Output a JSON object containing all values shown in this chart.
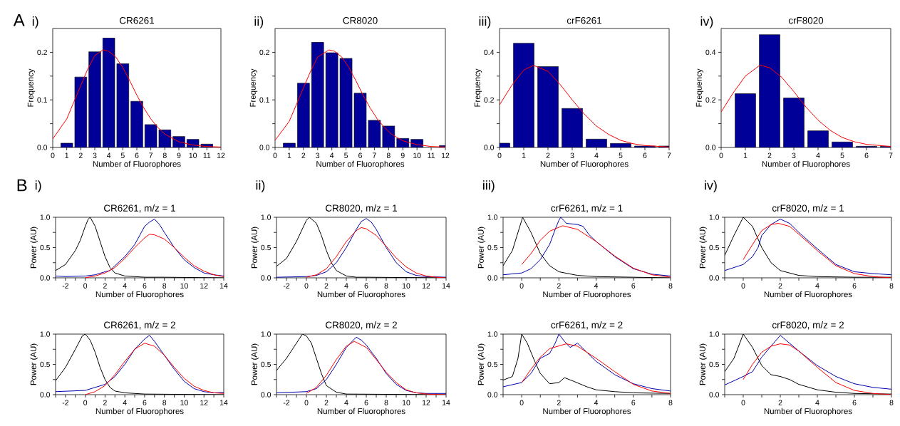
{
  "chart_data": [
    {
      "type": "bar",
      "title": "CR6261",
      "xlabel": "Number of Fluorophores",
      "ylabel": "Frequency",
      "annotations": [
        "A",
        "i)"
      ],
      "xlim": [
        0,
        12
      ],
      "ylim": [
        0,
        0.25
      ],
      "xticks": [
        0,
        1,
        2,
        3,
        4,
        5,
        6,
        7,
        8,
        9,
        10,
        11,
        12
      ],
      "yticks": [
        {
          "value": 0,
          "label": "0.0"
        },
        {
          "value": 0.05,
          "label": null
        },
        {
          "value": 0.1,
          "label": "0.1"
        },
        {
          "value": 0.15,
          "label": null
        },
        {
          "value": 0.2,
          "label": "0.2"
        }
      ],
      "series": [
        {
          "type": "bar",
          "color": "#000099",
          "x": [
            1,
            2,
            3,
            4,
            5,
            6,
            7,
            8,
            9,
            10,
            11
          ],
          "values": [
            0.009,
            0.148,
            0.201,
            0.23,
            0.176,
            0.097,
            0.048,
            0.037,
            0.023,
            0.017,
            0.007
          ]
        },
        {
          "type": "line",
          "color": "#ff0000",
          "x": [
            0,
            1,
            1.5,
            2,
            2.5,
            3,
            3.6,
            4,
            4.5,
            5,
            5.5,
            6,
            6.5,
            7,
            7.5,
            8,
            9,
            10,
            11,
            12
          ],
          "values": [
            0.018,
            0.06,
            0.095,
            0.13,
            0.165,
            0.193,
            0.205,
            0.202,
            0.19,
            0.168,
            0.14,
            0.11,
            0.083,
            0.06,
            0.042,
            0.028,
            0.012,
            0.005,
            0.002,
            0.001
          ]
        }
      ]
    },
    {
      "type": "bar",
      "title": "CR8020",
      "xlabel": "Number of Fluorophores",
      "ylabel": "Frequency",
      "annotations": [
        "ii)"
      ],
      "xlim": [
        0,
        12
      ],
      "ylim": [
        0,
        0.25
      ],
      "xticks": [
        0,
        1,
        2,
        3,
        4,
        5,
        6,
        7,
        8,
        9,
        10,
        11,
        12
      ],
      "yticks": [
        {
          "value": 0,
          "label": "0.0"
        },
        {
          "value": 0.05,
          "label": null
        },
        {
          "value": 0.1,
          "label": "0.1"
        },
        {
          "value": 0.15,
          "label": null
        },
        {
          "value": 0.2,
          "label": "0.2"
        }
      ],
      "series": [
        {
          "type": "bar",
          "color": "#000099",
          "x": [
            1,
            2,
            3,
            4,
            5,
            6,
            7,
            8,
            9,
            10,
            12
          ],
          "values": [
            0.009,
            0.135,
            0.221,
            0.199,
            0.187,
            0.114,
            0.057,
            0.045,
            0.019,
            0.017,
            0.004
          ]
        },
        {
          "type": "line",
          "color": "#ff0000",
          "x": [
            0,
            1,
            1.5,
            2,
            2.5,
            3,
            3.8,
            4.2,
            4.7,
            5.2,
            5.7,
            6.2,
            6.7,
            7.2,
            7.7,
            8.2,
            9,
            10,
            11,
            12
          ],
          "values": [
            0.015,
            0.055,
            0.09,
            0.125,
            0.16,
            0.19,
            0.205,
            0.202,
            0.19,
            0.168,
            0.14,
            0.11,
            0.083,
            0.06,
            0.042,
            0.028,
            0.014,
            0.006,
            0.002,
            0.001
          ]
        }
      ]
    },
    {
      "type": "bar",
      "title": "crF6261",
      "xlabel": "Number of Fluorophores",
      "ylabel": "Frequency",
      "annotations": [
        "iii)"
      ],
      "xlim": [
        0,
        7
      ],
      "ylim": [
        0,
        0.5
      ],
      "xticks": [
        0,
        1,
        2,
        3,
        4,
        5,
        6,
        7
      ],
      "yticks": [
        {
          "value": 0,
          "label": "0.0"
        },
        {
          "value": 0.1,
          "label": null
        },
        {
          "value": 0.2,
          "label": "0.2"
        },
        {
          "value": 0.3,
          "label": null
        },
        {
          "value": 0.4,
          "label": "0.4"
        }
      ],
      "series": [
        {
          "type": "bar",
          "color": "#000099",
          "x": [
            0,
            1,
            2,
            3,
            4,
            5,
            6,
            7
          ],
          "values": [
            0.018,
            0.438,
            0.34,
            0.164,
            0.035,
            0.017,
            0.006,
            0.006
          ]
        },
        {
          "type": "line",
          "color": "#ff0000",
          "x": [
            0,
            0.5,
            1,
            1.4,
            2,
            2.5,
            3,
            3.5,
            4,
            4.5,
            5,
            5.5,
            6,
            7
          ],
          "values": [
            0.179,
            0.26,
            0.325,
            0.345,
            0.32,
            0.265,
            0.2,
            0.14,
            0.09,
            0.055,
            0.03,
            0.016,
            0.008,
            0.002
          ]
        }
      ]
    },
    {
      "type": "bar",
      "title": "crF8020",
      "xlabel": "Number of Fluorophores",
      "ylabel": "Frequency",
      "annotations": [
        "iv)"
      ],
      "xlim": [
        0,
        7
      ],
      "ylim": [
        0,
        0.5
      ],
      "xticks": [
        0,
        1,
        2,
        3,
        4,
        5,
        6,
        7
      ],
      "yticks": [
        {
          "value": 0,
          "label": "0.0"
        },
        {
          "value": 0.1,
          "label": null
        },
        {
          "value": 0.2,
          "label": "0.2"
        },
        {
          "value": 0.3,
          "label": null
        },
        {
          "value": 0.4,
          "label": "0.4"
        }
      ],
      "series": [
        {
          "type": "bar",
          "color": "#000099",
          "x": [
            1,
            2,
            3,
            4,
            5,
            6,
            7
          ],
          "values": [
            0.226,
            0.474,
            0.208,
            0.07,
            0.023,
            0.005,
            0.005
          ]
        },
        {
          "type": "line",
          "color": "#ff0000",
          "x": [
            0,
            0.5,
            1,
            1.6,
            2,
            2.5,
            3,
            3.5,
            4,
            4.5,
            5,
            5.5,
            6,
            7
          ],
          "values": [
            0.149,
            0.23,
            0.3,
            0.346,
            0.335,
            0.295,
            0.235,
            0.17,
            0.115,
            0.072,
            0.042,
            0.024,
            0.013,
            0.004
          ]
        }
      ]
    },
    {
      "type": "line",
      "title": "CR6261, m/z = 1",
      "xlabel": "Number of Fluorophores",
      "ylabel": "Power (AU)",
      "annotations": [
        "B",
        "i)"
      ],
      "xlim": [
        -3,
        14
      ],
      "ylim": [
        0,
        1
      ],
      "xticks": [
        {
          "value": -3,
          "label": null
        },
        -2,
        {
          "value": -1,
          "label": null
        },
        0,
        {
          "value": 1,
          "label": null
        },
        2,
        {
          "value": 3,
          "label": null
        },
        4,
        {
          "value": 5,
          "label": null
        },
        6,
        {
          "value": 7,
          "label": null
        },
        8,
        {
          "value": 9,
          "label": null
        },
        10,
        {
          "value": 11,
          "label": null
        },
        12,
        {
          "value": 13,
          "label": null
        },
        14
      ],
      "yticks": [
        {
          "value": 0,
          "label": "0.0"
        },
        {
          "value": 0.25,
          "label": null
        },
        {
          "value": 0.5,
          "label": "0.5"
        },
        {
          "value": 0.75,
          "label": null
        },
        {
          "value": 1,
          "label": "1.0"
        }
      ],
      "series": [
        {
          "color": "#000000",
          "x": [
            -3,
            -2,
            -1,
            -0.5,
            0,
            0.3,
            0.5,
            1,
            1.5,
            2,
            2.5,
            3,
            4,
            5,
            6,
            8,
            14
          ],
          "values": [
            0.12,
            0.22,
            0.45,
            0.62,
            0.85,
            0.97,
            1.0,
            0.85,
            0.6,
            0.35,
            0.17,
            0.08,
            0.03,
            0.02,
            0.01,
            0.01,
            0.0
          ]
        },
        {
          "color": "#0000aa",
          "x": [
            -3,
            -2,
            0,
            1,
            2,
            2.5,
            3,
            4,
            5,
            5.5,
            6,
            6.5,
            7,
            7.5,
            8,
            9,
            10,
            11,
            12,
            13,
            14
          ],
          "values": [
            0.03,
            0.02,
            0.03,
            0.05,
            0.1,
            0.12,
            0.2,
            0.35,
            0.55,
            0.7,
            0.85,
            0.92,
            0.97,
            0.88,
            0.75,
            0.5,
            0.3,
            0.17,
            0.08,
            0.05,
            0.03
          ]
        },
        {
          "color": "#ff0000",
          "x": [
            0,
            1,
            2,
            3,
            4,
            5,
            6,
            6.5,
            7,
            8,
            9,
            10,
            11,
            12,
            13,
            14
          ],
          "values": [
            0.0,
            0.03,
            0.08,
            0.17,
            0.32,
            0.5,
            0.66,
            0.72,
            0.71,
            0.64,
            0.5,
            0.34,
            0.2,
            0.11,
            0.05,
            0.02
          ]
        }
      ]
    },
    {
      "type": "line",
      "title": "CR8020, m/z = 1",
      "xlabel": "Number of Fluorophores",
      "ylabel": "Power (AU)",
      "annotations": [
        "ii)"
      ],
      "xlim": [
        -3,
        14
      ],
      "ylim": [
        0,
        1
      ],
      "xticks": [
        {
          "value": -3,
          "label": null
        },
        -2,
        {
          "value": -1,
          "label": null
        },
        0,
        {
          "value": 1,
          "label": null
        },
        2,
        {
          "value": 3,
          "label": null
        },
        4,
        {
          "value": 5,
          "label": null
        },
        6,
        {
          "value": 7,
          "label": null
        },
        8,
        {
          "value": 9,
          "label": null
        },
        10,
        {
          "value": 11,
          "label": null
        },
        12,
        {
          "value": 13,
          "label": null
        },
        14
      ],
      "yticks": [
        {
          "value": 0,
          "label": "0.0"
        },
        {
          "value": 0.25,
          "label": null
        },
        {
          "value": 0.5,
          "label": "0.5"
        },
        {
          "value": 0.75,
          "label": null
        },
        {
          "value": 1,
          "label": "1.0"
        }
      ],
      "series": [
        {
          "color": "#000000",
          "x": [
            -3,
            -2,
            -1,
            0,
            0.3,
            1,
            1.5,
            2,
            2.5,
            3,
            4,
            5,
            6,
            14
          ],
          "values": [
            0.19,
            0.32,
            0.6,
            0.95,
            1.0,
            0.9,
            0.7,
            0.45,
            0.25,
            0.12,
            0.03,
            0.01,
            0.01,
            0.0
          ]
        },
        {
          "color": "#0000aa",
          "x": [
            -3,
            0,
            1,
            2,
            3,
            4,
            5,
            5.5,
            6,
            6.5,
            7,
            8,
            9,
            10,
            11,
            12,
            14
          ],
          "values": [
            0.01,
            0.02,
            0.04,
            0.1,
            0.25,
            0.5,
            0.8,
            0.93,
            0.98,
            0.92,
            0.8,
            0.5,
            0.25,
            0.1,
            0.04,
            0.02,
            0.01
          ]
        },
        {
          "color": "#ff0000",
          "x": [
            0,
            1,
            2,
            3,
            4,
            5,
            5.5,
            6,
            7,
            8,
            9,
            10,
            11,
            12,
            13,
            14
          ],
          "values": [
            0.01,
            0.05,
            0.15,
            0.35,
            0.6,
            0.78,
            0.83,
            0.81,
            0.7,
            0.52,
            0.33,
            0.18,
            0.08,
            0.03,
            0.01,
            0.0
          ]
        }
      ]
    },
    {
      "type": "line",
      "title": "crF6261, m/z = 1",
      "xlabel": "Number of Fluorophores",
      "ylabel": "Power (AU)",
      "annotations": [
        "iii)"
      ],
      "xlim": [
        -1,
        8
      ],
      "ylim": [
        0,
        1
      ],
      "xticks": [
        {
          "value": -1,
          "label": null
        },
        0,
        {
          "value": 1,
          "label": null
        },
        2,
        {
          "value": 3,
          "label": null
        },
        4,
        {
          "value": 5,
          "label": null
        },
        6,
        {
          "value": 7,
          "label": null
        },
        8
      ],
      "yticks": [
        {
          "value": 0,
          "label": "0.0"
        },
        {
          "value": 0.25,
          "label": null
        },
        {
          "value": 0.5,
          "label": "0.5"
        },
        {
          "value": 0.75,
          "label": null
        },
        {
          "value": 1,
          "label": "1.0"
        }
      ],
      "series": [
        {
          "color": "#000000",
          "x": [
            -1,
            -0.5,
            0,
            0.05,
            0.5,
            1,
            1.5,
            2,
            3,
            4,
            6,
            8
          ],
          "values": [
            0.2,
            0.45,
            0.95,
            1.0,
            0.75,
            0.4,
            0.2,
            0.1,
            0.04,
            0.02,
            0.01,
            0.0
          ]
        },
        {
          "color": "#0000aa",
          "x": [
            -1,
            0,
            0.5,
            1,
            1.5,
            1.8,
            2,
            2.1,
            2.4,
            3,
            3.3,
            3.6,
            4,
            5,
            6,
            7,
            8
          ],
          "values": [
            0.05,
            0.08,
            0.15,
            0.3,
            0.55,
            0.8,
            0.95,
            1.0,
            0.9,
            0.88,
            0.85,
            0.72,
            0.6,
            0.35,
            0.15,
            0.06,
            0.03
          ]
        },
        {
          "color": "#ff0000",
          "x": [
            0,
            0.5,
            1,
            1.5,
            2.2,
            3,
            4,
            5,
            6,
            7,
            8
          ],
          "values": [
            0.22,
            0.4,
            0.62,
            0.77,
            0.86,
            0.8,
            0.6,
            0.36,
            0.16,
            0.05,
            0.01
          ]
        }
      ]
    },
    {
      "type": "line",
      "title": "crF8020, m/z = 1",
      "xlabel": "Number of Fluorophores",
      "ylabel": "Power (AU)",
      "annotations": [
        "iv)"
      ],
      "xlim": [
        -1,
        8
      ],
      "ylim": [
        0,
        1
      ],
      "xticks": [
        {
          "value": -1,
          "label": null
        },
        0,
        {
          "value": 1,
          "label": null
        },
        2,
        {
          "value": 3,
          "label": null
        },
        4,
        {
          "value": 5,
          "label": null
        },
        6,
        {
          "value": 7,
          "label": null
        },
        8
      ],
      "yticks": [
        {
          "value": 0,
          "label": "0.0"
        },
        {
          "value": 0.25,
          "label": null
        },
        {
          "value": 0.5,
          "label": "0.5"
        },
        {
          "value": 0.75,
          "label": null
        },
        {
          "value": 1,
          "label": "1.0"
        }
      ],
      "series": [
        {
          "color": "#000000",
          "x": [
            -1,
            -0.5,
            0,
            0.5,
            1,
            1.5,
            2,
            3,
            4,
            6,
            8
          ],
          "values": [
            0.37,
            0.7,
            1.0,
            0.85,
            0.5,
            0.25,
            0.12,
            0.04,
            0.02,
            0.01,
            0.01
          ]
        },
        {
          "color": "#0000aa",
          "x": [
            -1,
            0,
            0.5,
            0.8,
            1,
            1.5,
            2,
            2.5,
            3,
            4,
            5,
            6,
            7,
            8
          ],
          "values": [
            0.12,
            0.22,
            0.35,
            0.5,
            0.7,
            0.88,
            0.97,
            0.9,
            0.75,
            0.48,
            0.22,
            0.1,
            0.07,
            0.05
          ]
        },
        {
          "color": "#ff0000",
          "x": [
            0,
            0.5,
            1,
            1.5,
            1.9,
            2.5,
            3,
            4,
            5,
            6,
            7,
            8
          ],
          "values": [
            0.3,
            0.55,
            0.78,
            0.88,
            0.9,
            0.85,
            0.72,
            0.45,
            0.2,
            0.07,
            0.02,
            0.0
          ]
        }
      ]
    },
    {
      "type": "line",
      "title": "CR6261, m/z = 2",
      "xlabel": "Number of Fluorophores",
      "ylabel": "Power (AU)",
      "xlim": [
        -3,
        14
      ],
      "ylim": [
        0,
        1
      ],
      "xticks": [
        {
          "value": -3,
          "label": null
        },
        -2,
        {
          "value": -1,
          "label": null
        },
        0,
        {
          "value": 1,
          "label": null
        },
        2,
        {
          "value": 3,
          "label": null
        },
        4,
        {
          "value": 5,
          "label": null
        },
        6,
        {
          "value": 7,
          "label": null
        },
        8,
        {
          "value": 9,
          "label": null
        },
        10,
        {
          "value": 11,
          "label": null
        },
        12,
        {
          "value": 13,
          "label": null
        },
        14
      ],
      "yticks": [
        {
          "value": 0,
          "label": "0.0"
        },
        {
          "value": 0.25,
          "label": null
        },
        {
          "value": 0.5,
          "label": "0.5"
        },
        {
          "value": 0.75,
          "label": null
        },
        {
          "value": 1,
          "label": "1.0"
        }
      ],
      "series": [
        {
          "color": "#000000",
          "x": [
            -3,
            -2,
            -1,
            -0.3,
            0,
            0.5,
            1,
            1.5,
            2,
            2.5,
            3,
            4,
            6,
            14
          ],
          "values": [
            0.23,
            0.45,
            0.75,
            0.97,
            1.0,
            0.9,
            0.7,
            0.45,
            0.25,
            0.12,
            0.06,
            0.03,
            0.01,
            0.0
          ]
        },
        {
          "color": "#0000aa",
          "x": [
            -3,
            0,
            1,
            2,
            3,
            4,
            5,
            6,
            6.5,
            7,
            8,
            9,
            10,
            11,
            12,
            13,
            14
          ],
          "values": [
            0.05,
            0.07,
            0.12,
            0.17,
            0.3,
            0.5,
            0.75,
            0.92,
            0.98,
            0.88,
            0.65,
            0.42,
            0.22,
            0.1,
            0.05,
            0.03,
            0.04
          ]
        },
        {
          "color": "#ff0000",
          "x": [
            0,
            1,
            2,
            3,
            4,
            5,
            6,
            7,
            8,
            9,
            10,
            11,
            12,
            13,
            14
          ],
          "values": [
            0.0,
            0.05,
            0.15,
            0.33,
            0.55,
            0.75,
            0.85,
            0.8,
            0.65,
            0.45,
            0.27,
            0.14,
            0.07,
            0.03,
            0.02
          ]
        }
      ]
    },
    {
      "type": "line",
      "title": "CR8020, m/z = 2",
      "xlabel": "Number of Fluorophores",
      "ylabel": "Power (AU)",
      "xlim": [
        -3,
        14
      ],
      "ylim": [
        0,
        1
      ],
      "xticks": [
        {
          "value": -3,
          "label": null
        },
        -2,
        {
          "value": -1,
          "label": null
        },
        0,
        {
          "value": 1,
          "label": null
        },
        2,
        {
          "value": 3,
          "label": null
        },
        4,
        {
          "value": 5,
          "label": null
        },
        6,
        {
          "value": 7,
          "label": null
        },
        8,
        {
          "value": 9,
          "label": null
        },
        10,
        {
          "value": 11,
          "label": null
        },
        12,
        {
          "value": 13,
          "label": null
        },
        14
      ],
      "yticks": [
        {
          "value": 0,
          "label": "0.0"
        },
        {
          "value": 0.25,
          "label": null
        },
        {
          "value": 0.5,
          "label": "0.5"
        },
        {
          "value": 0.75,
          "label": null
        },
        {
          "value": 1,
          "label": "1.0"
        }
      ],
      "series": [
        {
          "color": "#000000",
          "x": [
            -3,
            -2,
            -1,
            -0.4,
            0,
            0.5,
            1,
            1.5,
            2,
            3,
            4,
            14
          ],
          "values": [
            0.4,
            0.6,
            0.85,
            1.0,
            0.97,
            0.85,
            0.6,
            0.35,
            0.15,
            0.04,
            0.01,
            0.0
          ]
        },
        {
          "color": "#0000aa",
          "x": [
            -3,
            0,
            1,
            2,
            3,
            4,
            5,
            5.5,
            6,
            7,
            8,
            9,
            10,
            11,
            12,
            14
          ],
          "values": [
            0.03,
            0.05,
            0.1,
            0.25,
            0.5,
            0.78,
            0.95,
            0.9,
            0.82,
            0.6,
            0.35,
            0.17,
            0.07,
            0.03,
            0.02,
            0.02
          ]
        },
        {
          "color": "#ff0000",
          "x": [
            0,
            1,
            2,
            3,
            4,
            4.8,
            6,
            7,
            8,
            9,
            10,
            11,
            12,
            14
          ],
          "values": [
            0.02,
            0.12,
            0.32,
            0.58,
            0.8,
            0.88,
            0.78,
            0.58,
            0.37,
            0.2,
            0.08,
            0.03,
            0.01,
            0.0
          ]
        }
      ]
    },
    {
      "type": "line",
      "title": "crF6261, m/z = 2",
      "xlabel": "Number of Fluorophores",
      "ylabel": "Power (AU)",
      "xlim": [
        -1,
        8
      ],
      "ylim": [
        0,
        1
      ],
      "xticks": [
        {
          "value": -1,
          "label": null
        },
        0,
        {
          "value": 1,
          "label": null
        },
        2,
        {
          "value": 3,
          "label": null
        },
        4,
        {
          "value": 5,
          "label": null
        },
        6,
        {
          "value": 7,
          "label": null
        },
        8
      ],
      "yticks": [
        {
          "value": 0,
          "label": "0.0"
        },
        {
          "value": 0.25,
          "label": null
        },
        {
          "value": 0.5,
          "label": "0.5"
        },
        {
          "value": 0.75,
          "label": null
        },
        {
          "value": 1,
          "label": "1.0"
        }
      ],
      "series": [
        {
          "color": "#000000",
          "x": [
            -1,
            -0.5,
            -0.2,
            0,
            0.3,
            0.7,
            1,
            1.5,
            2,
            2.3,
            2.8,
            3.5,
            4,
            5,
            6,
            8
          ],
          "values": [
            0.24,
            0.3,
            0.6,
            1.0,
            0.85,
            0.55,
            0.35,
            0.18,
            0.2,
            0.28,
            0.22,
            0.13,
            0.08,
            0.05,
            0.03,
            0.02
          ]
        },
        {
          "color": "#0000aa",
          "x": [
            -1,
            0,
            0.5,
            1,
            1.5,
            1.8,
            2,
            2.3,
            2.6,
            3,
            3.5,
            4,
            5,
            6,
            7,
            8
          ],
          "values": [
            0.13,
            0.2,
            0.35,
            0.6,
            0.68,
            0.85,
            1.0,
            0.88,
            0.78,
            0.85,
            0.7,
            0.55,
            0.33,
            0.18,
            0.1,
            0.06
          ]
        },
        {
          "color": "#ff0000",
          "x": [
            0,
            0.5,
            1,
            1.5,
            2.4,
            3,
            4,
            5,
            6,
            7,
            8
          ],
          "values": [
            0.2,
            0.42,
            0.62,
            0.76,
            0.84,
            0.8,
            0.6,
            0.38,
            0.17,
            0.06,
            0.02
          ]
        }
      ]
    },
    {
      "type": "line",
      "title": "crF8020, m/z = 2",
      "xlabel": "Number of Fluorophores",
      "ylabel": "Power (AU)",
      "xlim": [
        -1,
        8
      ],
      "ylim": [
        0,
        1
      ],
      "xticks": [
        {
          "value": -1,
          "label": null
        },
        0,
        {
          "value": 1,
          "label": null
        },
        2,
        {
          "value": 3,
          "label": null
        },
        4,
        {
          "value": 5,
          "label": null
        },
        6,
        {
          "value": 7,
          "label": null
        },
        8
      ],
      "yticks": [
        {
          "value": 0,
          "label": "0.0"
        },
        {
          "value": 0.25,
          "label": null
        },
        {
          "value": 0.5,
          "label": "0.5"
        },
        {
          "value": 0.75,
          "label": null
        },
        {
          "value": 1,
          "label": "1.0"
        }
      ],
      "series": [
        {
          "color": "#000000",
          "x": [
            -1,
            -0.5,
            0,
            0.5,
            1,
            1.5,
            2,
            2.5,
            3,
            4,
            5,
            6,
            8
          ],
          "values": [
            0.38,
            0.6,
            1.0,
            0.78,
            0.48,
            0.33,
            0.3,
            0.25,
            0.17,
            0.08,
            0.04,
            0.02,
            0.01
          ]
        },
        {
          "color": "#0000aa",
          "x": [
            -1,
            0,
            0.5,
            1,
            1.5,
            2,
            2.5,
            3,
            4,
            5,
            6,
            7,
            8
          ],
          "values": [
            0.16,
            0.3,
            0.38,
            0.62,
            0.8,
            0.98,
            0.85,
            0.72,
            0.48,
            0.3,
            0.18,
            0.12,
            0.09
          ]
        },
        {
          "color": "#ff0000",
          "x": [
            0,
            0.5,
            1,
            1.5,
            2,
            2.5,
            3,
            4,
            5,
            6,
            7,
            8
          ],
          "values": [
            0.25,
            0.5,
            0.7,
            0.8,
            0.84,
            0.82,
            0.72,
            0.45,
            0.2,
            0.07,
            0.02,
            0.0
          ]
        }
      ]
    }
  ]
}
